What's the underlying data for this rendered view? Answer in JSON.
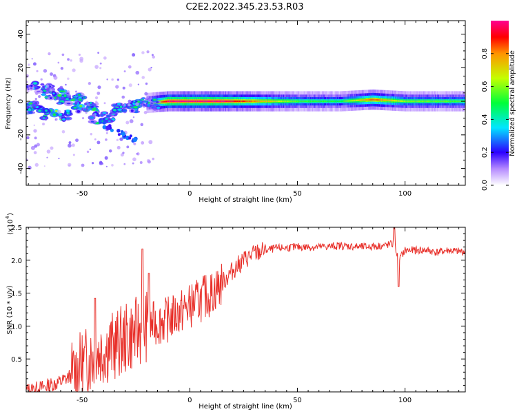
{
  "title": "C2E2.2022.345.23.53.R03",
  "chart_data": [
    {
      "type": "heatmap",
      "name": "spectrogram",
      "xlabel": "Height of straight line (km)",
      "ylabel": "Frequency (Hz)",
      "xlim": [
        -76,
        128
      ],
      "ylim": [
        -50,
        48
      ],
      "xticks": [
        -50,
        0,
        50,
        100
      ],
      "yticks": [
        -40,
        -20,
        0,
        20,
        40
      ],
      "ridge": [
        {
          "x": -70,
          "f": 8,
          "a": 0.35
        },
        {
          "x": -62,
          "f": 4,
          "a": 0.5
        },
        {
          "x": -55,
          "f": 1,
          "a": 0.45
        },
        {
          "x": -72,
          "f": -4,
          "a": 0.5
        },
        {
          "x": -62,
          "f": -8,
          "a": 0.55
        },
        {
          "x": -48,
          "f": -4,
          "a": 0.5
        },
        {
          "x": -40,
          "f": -10,
          "a": 0.45
        },
        {
          "x": -30,
          "f": -4,
          "a": 0.4
        },
        {
          "x": -20,
          "f": -1,
          "a": 0.45
        },
        {
          "x": -10,
          "f": 0,
          "a": 1.0
        },
        {
          "x": 0,
          "f": 0,
          "a": 1.0
        },
        {
          "x": 15,
          "f": 0,
          "a": 1.0
        },
        {
          "x": 30,
          "f": 0,
          "a": 0.8
        },
        {
          "x": 50,
          "f": 0,
          "a": 0.55
        },
        {
          "x": 70,
          "f": 0,
          "a": 0.5
        },
        {
          "x": 85,
          "f": 1,
          "a": 0.85
        },
        {
          "x": 100,
          "f": 0,
          "a": 0.6
        },
        {
          "x": 120,
          "f": 0,
          "a": 0.55
        }
      ],
      "colorbar": {
        "label": "Normalized spectral amplitude",
        "range": [
          0,
          1
        ],
        "ticks": [
          0.0,
          0.2,
          0.4,
          0.6,
          0.8
        ],
        "tick_labels": [
          "0.0",
          "0.2",
          "0.4",
          "0.6",
          "0.8"
        ]
      }
    },
    {
      "type": "line",
      "name": "snr",
      "xlabel": "Height of straight line (km)",
      "ylabel": "SNR (10 * v/v)",
      "multiplier_label": "(x10",
      "multiplier_exp": "4",
      "xlim": [
        -76,
        128
      ],
      "ylim": [
        0,
        2.5
      ],
      "xticks": [
        -50,
        0,
        50,
        100
      ],
      "yticks": [
        0.5,
        1.0,
        1.5,
        2.0,
        2.5
      ],
      "ytick_labels": [
        "0.5",
        "1.0",
        "1.5",
        "2.0",
        "2.5"
      ],
      "color": "#e8302a",
      "series": {
        "x": [
          -76,
          -70,
          -65,
          -60,
          -55,
          -50,
          -45,
          -40,
          -35,
          -30,
          -25,
          -20,
          -15,
          -10,
          -5,
          0,
          5,
          10,
          15,
          20,
          25,
          30,
          35,
          40,
          50,
          60,
          70,
          80,
          90,
          95,
          97,
          100,
          105,
          110,
          115,
          120,
          125,
          128
        ],
        "y": [
          0.02,
          0.05,
          0.1,
          0.15,
          0.25,
          0.4,
          0.55,
          0.65,
          0.7,
          0.8,
          0.9,
          1.0,
          1.05,
          1.1,
          1.2,
          1.3,
          1.4,
          1.5,
          1.65,
          1.85,
          2.0,
          2.1,
          2.15,
          2.18,
          2.2,
          2.2,
          2.22,
          2.2,
          2.22,
          2.25,
          2.0,
          2.15,
          2.15,
          2.15,
          2.12,
          2.15,
          2.13,
          2.13
        ]
      },
      "noise": [
        {
          "from": -76,
          "to": -55,
          "amp": 0.12
        },
        {
          "from": -55,
          "to": -20,
          "amp": 0.55
        },
        {
          "from": -20,
          "to": 15,
          "amp": 0.35
        },
        {
          "from": 15,
          "to": 35,
          "amp": 0.15
        },
        {
          "from": 35,
          "to": 128,
          "amp": 0.06
        }
      ],
      "spikes": [
        {
          "x": -44,
          "y": 1.42
        },
        {
          "x": -22,
          "y": 2.17
        },
        {
          "x": -19,
          "y": 1.8
        },
        {
          "x": 95,
          "y": 2.5
        },
        {
          "x": 97,
          "y": 1.6
        }
      ]
    }
  ]
}
